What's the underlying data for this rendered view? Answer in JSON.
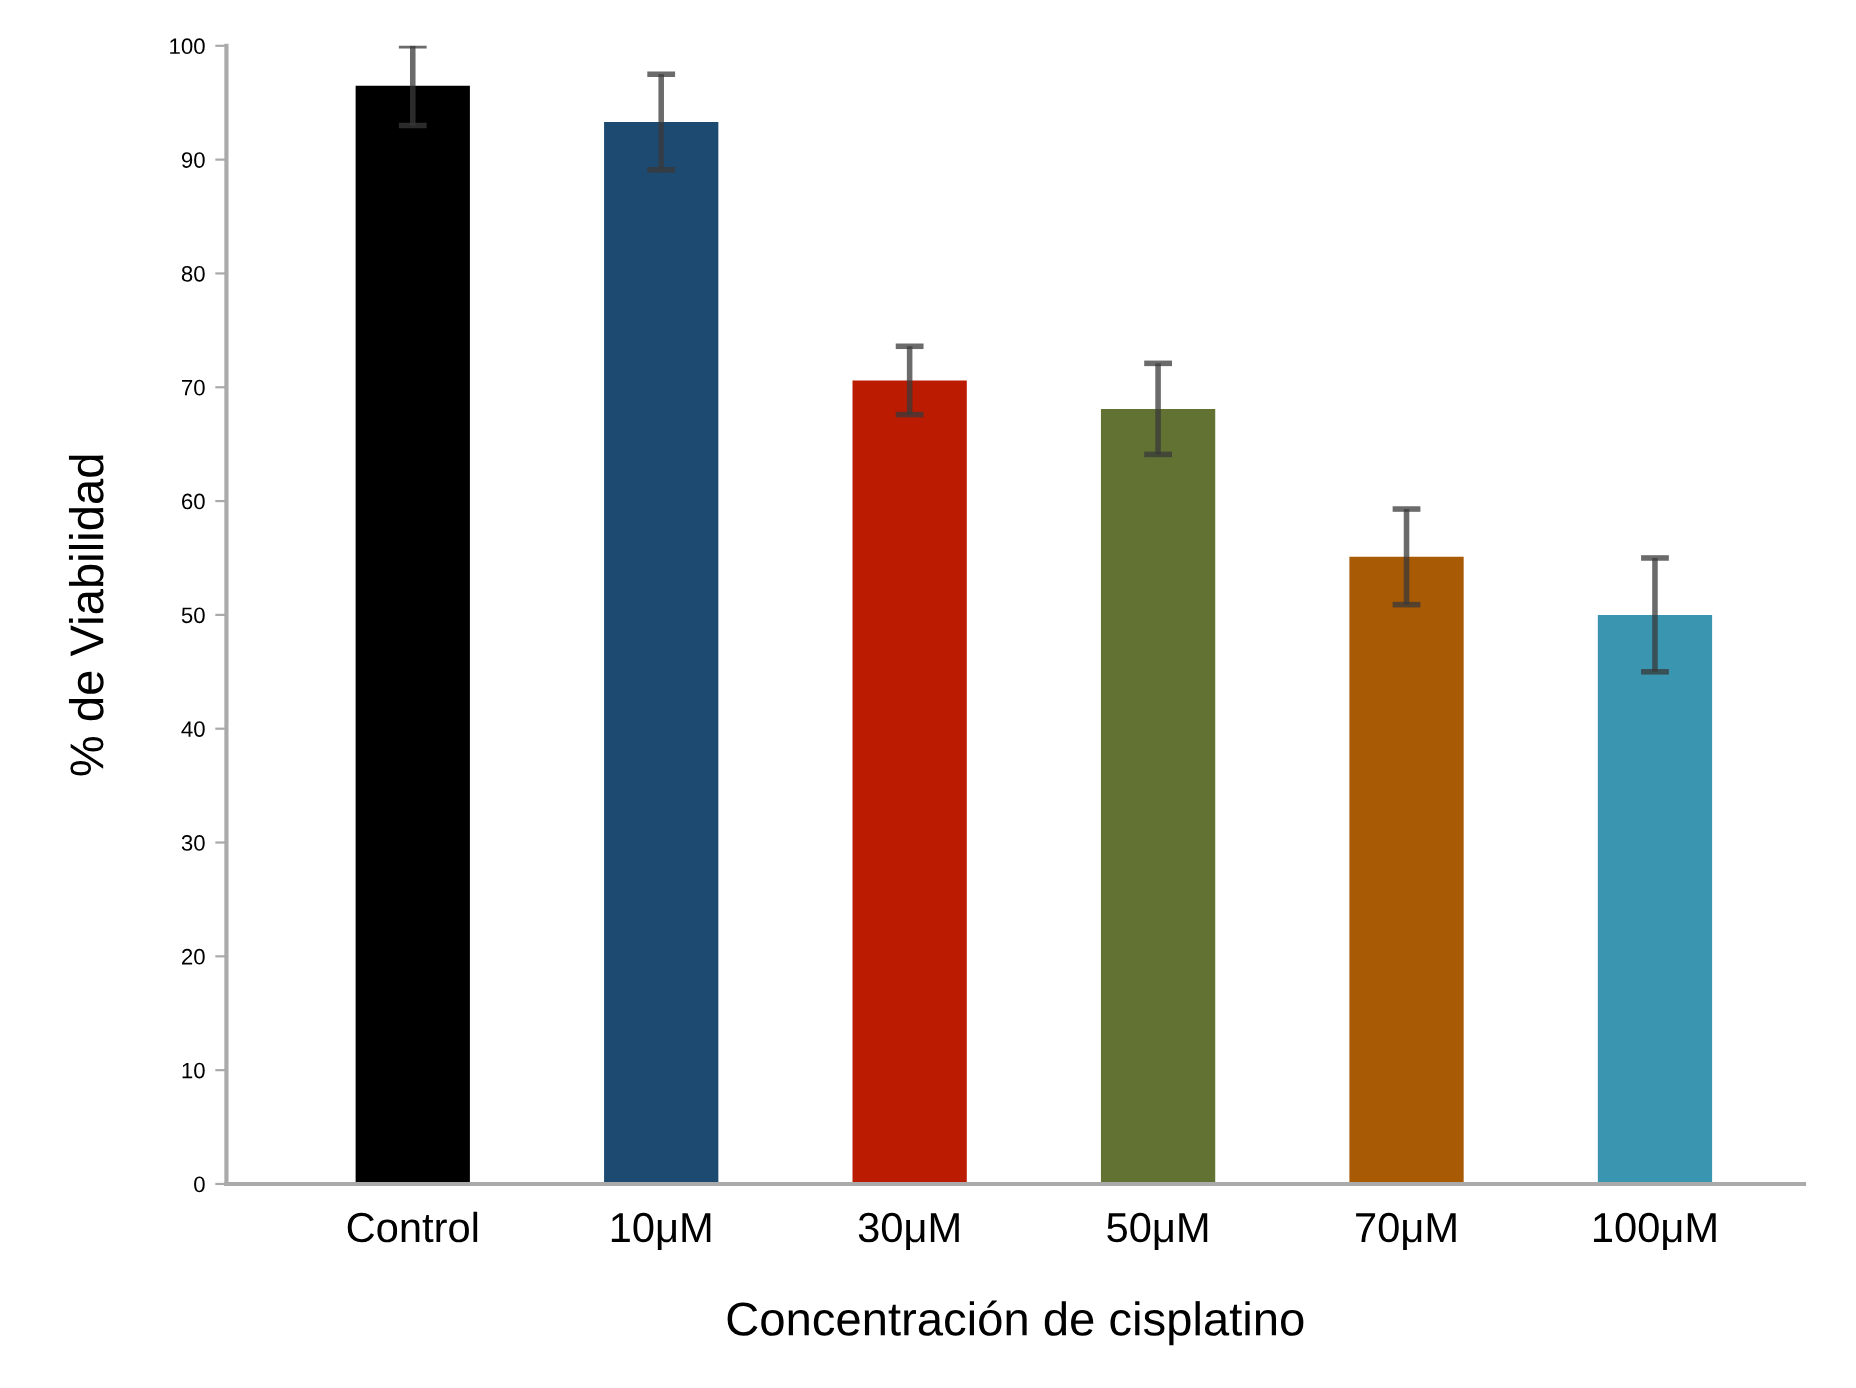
{
  "chart_data": {
    "type": "bar",
    "xlabel": "Concentración de cisplatino",
    "ylabel": "% de Viabilidad",
    "categories": [
      "Control",
      "10μM",
      "30μM",
      "50μM",
      "70μM",
      "100μM"
    ],
    "values": [
      96.5,
      93.3,
      70.6,
      68.1,
      55.1,
      50
    ],
    "errors": [
      3.5,
      4.2,
      3,
      4,
      4.2,
      5
    ],
    "colors": [
      "#000000",
      "#1d4a70",
      "#bb1b00",
      "#627232",
      "#a85a05",
      "#3a95b0"
    ],
    "ylim": [
      0,
      100
    ],
    "yticks": [
      0,
      10,
      20,
      30,
      40,
      50,
      60,
      70,
      80,
      90,
      100
    ],
    "grid": false
  }
}
